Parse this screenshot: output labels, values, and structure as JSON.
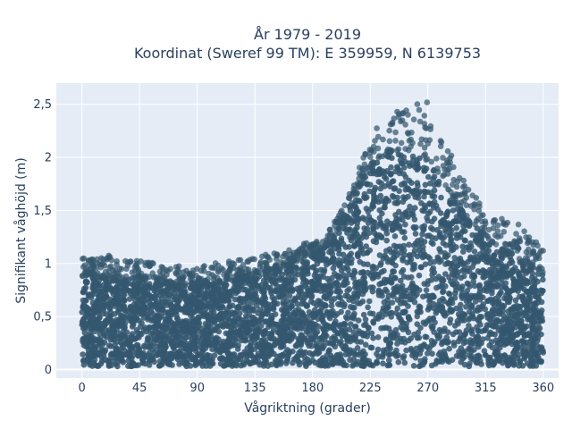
{
  "chart_data": {
    "type": "scatter",
    "title_line1": "År 1979 - 2019",
    "title_line2": "Koordinat (Sweref 99 TM): E 359959, N 6139753",
    "xlabel": "Vågriktning (grader)",
    "ylabel": "Signifikant våghöjd (m)",
    "xlim": [
      -20,
      372
    ],
    "ylim": [
      -0.08,
      2.7
    ],
    "x_ticks": [
      0,
      45,
      90,
      135,
      180,
      225,
      270,
      315,
      360
    ],
    "x_tick_labels": [
      "0",
      "45",
      "90",
      "135",
      "180",
      "225",
      "270",
      "315",
      "360"
    ],
    "y_ticks": [
      0,
      0.5,
      1,
      1.5,
      2,
      2.5
    ],
    "y_tick_labels": [
      "0",
      "0,5",
      "1",
      "1,5",
      "2",
      "2,5"
    ],
    "grid": true,
    "marker_color": "#34576e",
    "plot_bg": "#e5ecf6",
    "upper_envelope": {
      "x": [
        0,
        20,
        45,
        70,
        90,
        110,
        135,
        160,
        180,
        195,
        210,
        225,
        240,
        255,
        270,
        285,
        300,
        315,
        330,
        345,
        360
      ],
      "y": [
        1.05,
        1.08,
        1.05,
        0.98,
        0.98,
        1.02,
        1.07,
        1.12,
        1.22,
        1.35,
        1.7,
        2.2,
        2.45,
        2.48,
        2.55,
        2.1,
        1.75,
        1.5,
        1.42,
        1.35,
        1.18
      ]
    },
    "dense_upper": {
      "x": [
        0,
        20,
        45,
        70,
        90,
        110,
        135,
        160,
        180,
        195,
        210,
        225,
        240,
        255,
        270,
        285,
        300,
        315,
        330,
        345,
        360
      ],
      "y": [
        0.88,
        0.87,
        0.86,
        0.8,
        0.8,
        0.84,
        0.9,
        0.98,
        1.08,
        1.2,
        1.55,
        1.92,
        2.05,
        2.05,
        1.95,
        1.72,
        1.45,
        1.25,
        1.12,
        1.02,
        0.9
      ]
    },
    "lower_bound": 0.03
  }
}
